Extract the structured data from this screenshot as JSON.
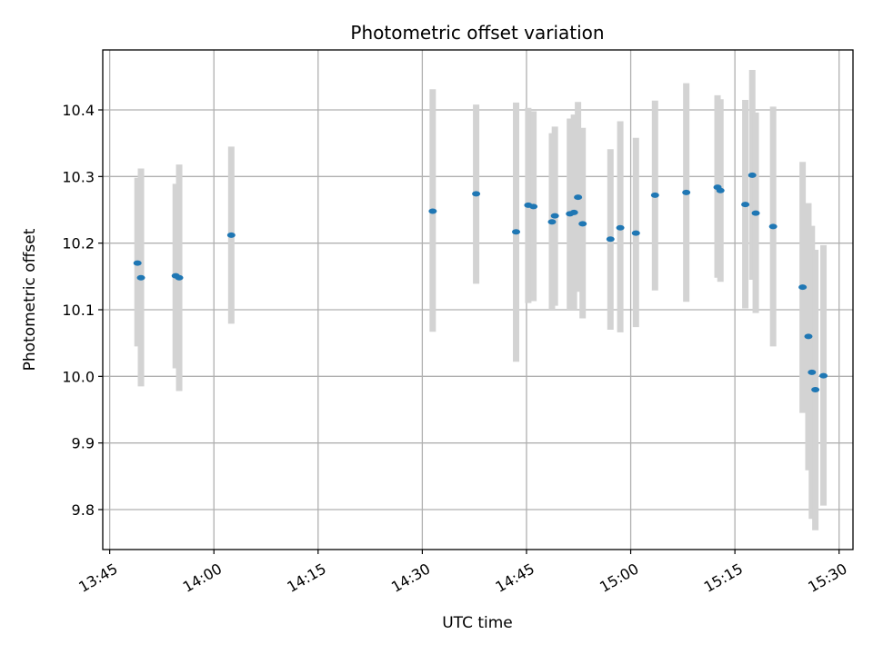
{
  "chart_data": {
    "type": "scatter",
    "title": "Photometric offset variation",
    "xlabel": "UTC time",
    "ylabel": "Photometric offset",
    "xlim": [
      "13:44",
      "15:32"
    ],
    "ylim": [
      9.74,
      10.49
    ],
    "grid": true,
    "legend": "none",
    "x_ticks": [
      "13:45",
      "14:00",
      "14:15",
      "14:30",
      "14:45",
      "15:00",
      "15:15",
      "15:30"
    ],
    "y_ticks": [
      9.8,
      9.9,
      10.0,
      10.1,
      10.2,
      10.3,
      10.4
    ],
    "colors": {
      "marker": "#1f77b4",
      "errorbar": "#d3d3d3"
    },
    "series": [
      {
        "points": [
          {
            "x": "13:49:00",
            "y": 10.17,
            "ylow": 10.045,
            "yhigh": 10.298
          },
          {
            "x": "13:49:30",
            "y": 10.148,
            "ylow": 9.985,
            "yhigh": 10.312
          },
          {
            "x": "13:54:30",
            "y": 10.151,
            "ylow": 10.012,
            "yhigh": 10.289
          },
          {
            "x": "13:55:00",
            "y": 10.148,
            "ylow": 9.978,
            "yhigh": 10.318
          },
          {
            "x": "14:02:30",
            "y": 10.212,
            "ylow": 10.079,
            "yhigh": 10.345
          },
          {
            "x": "14:31:30",
            "y": 10.248,
            "ylow": 10.067,
            "yhigh": 10.431
          },
          {
            "x": "14:37:45",
            "y": 10.274,
            "ylow": 10.139,
            "yhigh": 10.408
          },
          {
            "x": "14:43:30",
            "y": 10.217,
            "ylow": 10.022,
            "yhigh": 10.411
          },
          {
            "x": "14:45:15",
            "y": 10.257,
            "ylow": 10.11,
            "yhigh": 10.403
          },
          {
            "x": "14:46:00",
            "y": 10.255,
            "ylow": 10.113,
            "yhigh": 10.398
          },
          {
            "x": "14:48:40",
            "y": 10.232,
            "ylow": 10.1,
            "yhigh": 10.365
          },
          {
            "x": "14:49:05",
            "y": 10.241,
            "ylow": 10.106,
            "yhigh": 10.375
          },
          {
            "x": "14:51:15",
            "y": 10.244,
            "ylow": 10.1,
            "yhigh": 10.387
          },
          {
            "x": "14:51:50",
            "y": 10.246,
            "ylow": 10.1,
            "yhigh": 10.393
          },
          {
            "x": "14:52:25",
            "y": 10.269,
            "ylow": 10.127,
            "yhigh": 10.412
          },
          {
            "x": "14:53:05",
            "y": 10.229,
            "ylow": 10.087,
            "yhigh": 10.373
          },
          {
            "x": "14:57:05",
            "y": 10.206,
            "ylow": 10.07,
            "yhigh": 10.341
          },
          {
            "x": "14:58:30",
            "y": 10.223,
            "ylow": 10.066,
            "yhigh": 10.383
          },
          {
            "x": "15:00:45",
            "y": 10.215,
            "ylow": 10.074,
            "yhigh": 10.358
          },
          {
            "x": "15:03:30",
            "y": 10.272,
            "ylow": 10.129,
            "yhigh": 10.414
          },
          {
            "x": "15:08:00",
            "y": 10.276,
            "ylow": 10.112,
            "yhigh": 10.44
          },
          {
            "x": "15:12:30",
            "y": 10.284,
            "ylow": 10.148,
            "yhigh": 10.422
          },
          {
            "x": "15:12:55",
            "y": 10.279,
            "ylow": 10.142,
            "yhigh": 10.416
          },
          {
            "x": "15:16:30",
            "y": 10.258,
            "ylow": 10.102,
            "yhigh": 10.415
          },
          {
            "x": "15:17:30",
            "y": 10.302,
            "ylow": 10.145,
            "yhigh": 10.46
          },
          {
            "x": "15:18:00",
            "y": 10.245,
            "ylow": 10.095,
            "yhigh": 10.396
          },
          {
            "x": "15:20:30",
            "y": 10.225,
            "ylow": 10.045,
            "yhigh": 10.405
          },
          {
            "x": "15:24:45",
            "y": 10.134,
            "ylow": 9.945,
            "yhigh": 10.322
          },
          {
            "x": "15:25:35",
            "y": 10.06,
            "ylow": 9.859,
            "yhigh": 10.26
          },
          {
            "x": "15:26:05",
            "y": 10.006,
            "ylow": 9.786,
            "yhigh": 10.226
          },
          {
            "x": "15:26:35",
            "y": 9.98,
            "ylow": 9.769,
            "yhigh": 10.19
          },
          {
            "x": "15:27:45",
            "y": 10.001,
            "ylow": 9.806,
            "yhigh": 10.197
          }
        ]
      }
    ]
  }
}
